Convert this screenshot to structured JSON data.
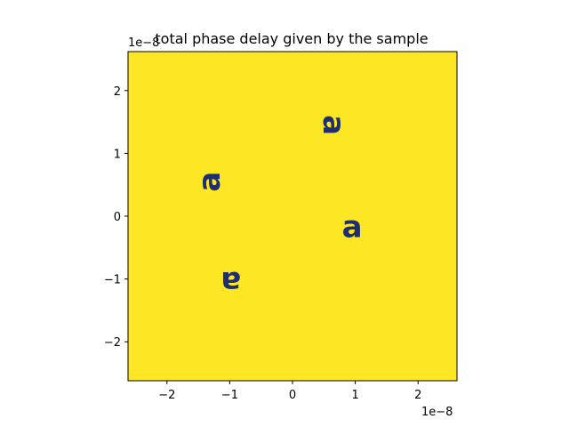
{
  "chart_data": {
    "type": "heatmap",
    "title": "total phase delay given by the sample",
    "xlabel": "",
    "ylabel": "",
    "xlim": [
      -2.62,
      2.62
    ],
    "ylim": [
      -2.62,
      2.62
    ],
    "x_offset_label": "1e−8",
    "y_offset_label": "1e−8",
    "x_ticks": [
      {
        "value": -2,
        "label": "−2"
      },
      {
        "value": -1,
        "label": "−1"
      },
      {
        "value": 0,
        "label": "0"
      },
      {
        "value": 1,
        "label": "1"
      },
      {
        "value": 2,
        "label": "2"
      }
    ],
    "y_ticks": [
      {
        "value": 2,
        "label": "2"
      },
      {
        "value": 1,
        "label": "1"
      },
      {
        "value": 0,
        "label": "0"
      },
      {
        "value": -1,
        "label": "−1"
      },
      {
        "value": -2,
        "label": "−2"
      }
    ],
    "background_color": "#fde725",
    "feature_color": "#1f2f6e",
    "grid": false,
    "features": [
      {
        "glyph": "a",
        "x": 0.65,
        "y": 1.45,
        "rotation": 90
      },
      {
        "glyph": "a",
        "x": -1.32,
        "y": 0.55,
        "rotation": -90
      },
      {
        "glyph": "a",
        "x": 0.95,
        "y": -0.18,
        "rotation": 0
      },
      {
        "glyph": "a",
        "x": -0.98,
        "y": -1.05,
        "rotation": 180
      }
    ]
  }
}
